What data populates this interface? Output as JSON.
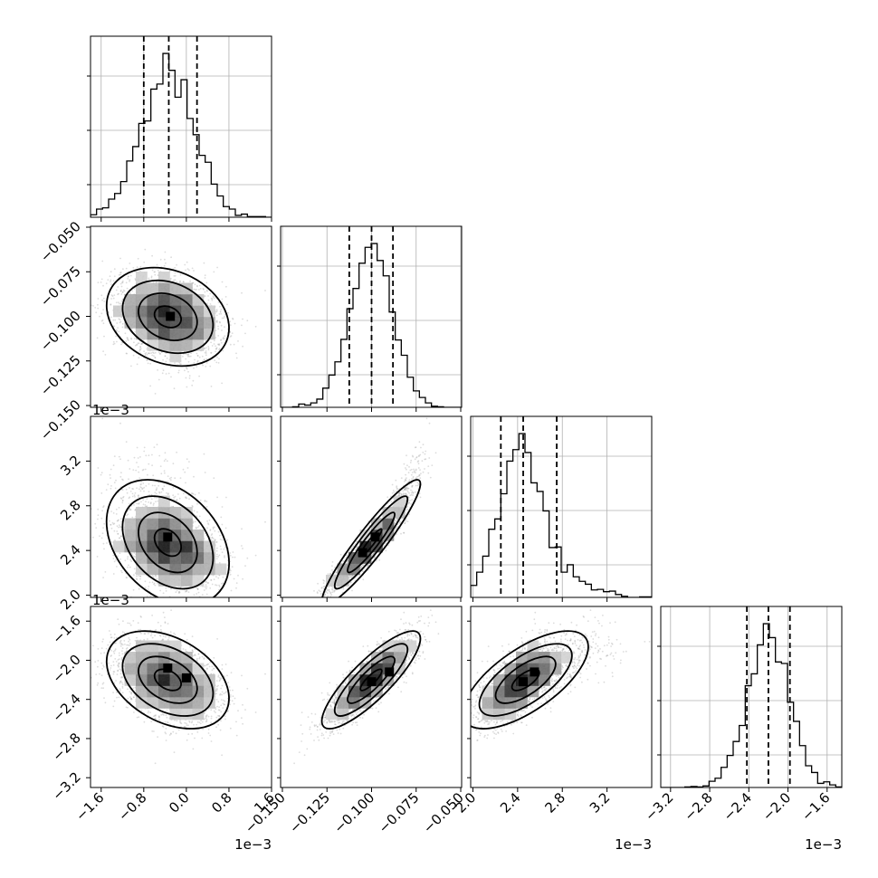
{
  "figure": {
    "type": "corner-plot",
    "histogram_tick_labels_shown": false,
    "grid_in_diagonal": true,
    "color": "#000000",
    "scatter_color": "#999999"
  },
  "chart_data": {
    "type": "corner",
    "parameters": [
      {
        "index": 0,
        "range": [
          -1.8,
          1.6
        ],
        "scale_label": "1e−3",
        "ticks": [
          -1.6,
          -0.8,
          0.0,
          0.8,
          1.6
        ],
        "tick_labels": [
          "−1.6",
          "−0.8",
          "0.0",
          "0.8",
          "1.6"
        ],
        "quantiles": [
          -0.8,
          -0.33,
          0.2
        ],
        "center": -0.33,
        "sigma": 0.5,
        "skew": 0
      },
      {
        "index": 1,
        "range": [
          -0.151,
          -0.0495
        ],
        "scale_label": "",
        "ticks": [
          -0.15,
          -0.125,
          -0.1,
          -0.075,
          -0.05
        ],
        "tick_labels": [
          "−0.150",
          "−0.125",
          "−0.100",
          "−0.075",
          "−0.050"
        ],
        "quantiles": [
          -0.1125,
          -0.1,
          -0.088
        ],
        "center": -0.1,
        "sigma": 0.012,
        "skew": 0
      },
      {
        "index": 2,
        "range": [
          1.98,
          3.6
        ],
        "scale_label": "1e−3",
        "ticks": [
          2.0,
          2.4,
          2.8,
          3.2
        ],
        "tick_labels": [
          "2.0",
          "2.4",
          "2.8",
          "3.2"
        ],
        "quantiles": [
          2.25,
          2.45,
          2.75
        ],
        "center": 2.45,
        "sigma": 0.2,
        "skew": 0.25
      },
      {
        "index": 3,
        "range": [
          -3.3,
          -1.45
        ],
        "scale_label": "1e−3",
        "ticks": [
          -3.2,
          -2.8,
          -2.4,
          -2.0,
          -1.6
        ],
        "tick_labels": [
          "−3.2",
          "−2.8",
          "−2.4",
          "−2.0",
          "−1.6"
        ],
        "quantiles": [
          -2.42,
          -2.2,
          -1.98
        ],
        "center": -2.2,
        "sigma": 0.22,
        "skew": 0
      }
    ],
    "correlations": {
      "1-0": -0.25,
      "2-0": -0.35,
      "2-1": 0.95,
      "3-0": -0.4,
      "3-1": 0.85,
      "3-2": 0.7
    },
    "histogram_bins": 30,
    "density_peaks": {
      "1-0": [
        [
          -0.3,
          -0.1
        ]
      ],
      "2-0": [
        [
          -0.35,
          2.52
        ]
      ],
      "2-1": [
        [
          -0.098,
          2.52
        ],
        [
          -0.105,
          2.38
        ]
      ],
      "3-0": [
        [
          -0.35,
          -2.08
        ],
        [
          0.0,
          -2.18
        ]
      ],
      "3-1": [
        [
          -0.1,
          -2.22
        ],
        [
          -0.09,
          -2.12
        ]
      ],
      "3-2": [
        [
          2.45,
          -2.22
        ],
        [
          2.55,
          -2.12
        ]
      ]
    }
  }
}
